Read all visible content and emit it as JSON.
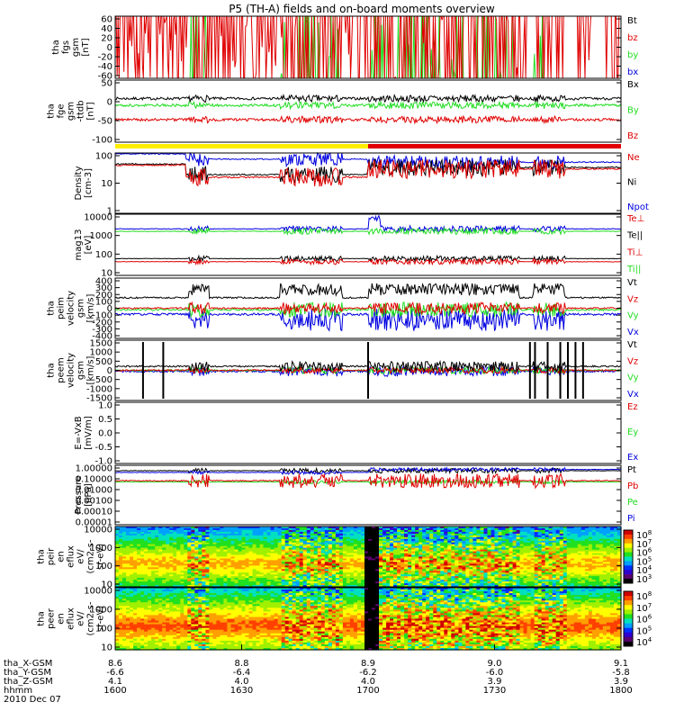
{
  "title": "P5 (TH-A) fields and on-board moments overview",
  "colors": {
    "black": "#000000",
    "red": "#e00000",
    "green": "#22dd22",
    "blue": "#0000e0",
    "yellow": "#ffee00"
  },
  "time_axis": {
    "xlim": [
      1600,
      1800
    ],
    "rows": [
      {
        "name": "tha_X-GSM",
        "values": [
          "8.6",
          "8.8",
          "8.9",
          "9.0",
          "9.1"
        ]
      },
      {
        "name": "tha_Y-GSM",
        "values": [
          "-6.6",
          "-6.4",
          "-6.2",
          "-6.0",
          "-5.8"
        ]
      },
      {
        "name": "tha_Z-GSM",
        "values": [
          "4.1",
          "4.0",
          "4.0",
          "3.9",
          "3.9"
        ]
      },
      {
        "name": "hhmm",
        "values": [
          "1600",
          "1630",
          "1700",
          "1730",
          "1800"
        ]
      }
    ],
    "date": "2010 Dec 07"
  },
  "chart_data": [
    {
      "type": "line",
      "ylabel": [
        "tha",
        "fgs",
        "gsm",
        "[nT]"
      ],
      "yticks": [
        "60",
        "40",
        "20",
        "0",
        "-20",
        "-40",
        "-60"
      ],
      "ylim": [
        -60,
        60
      ],
      "series": [
        {
          "name": "Bt",
          "color": "#000000"
        },
        {
          "name": "bz",
          "color": "#e00000"
        },
        {
          "name": "by",
          "color": "#22dd22"
        },
        {
          "name": "bx",
          "color": "#0000e0"
        }
      ]
    },
    {
      "type": "line",
      "ylabel": [
        "tha",
        "fge",
        "gsm",
        "-ttdb",
        "[nT]"
      ],
      "yticks": [
        "50",
        "0",
        "-50",
        "-100"
      ],
      "ylim": [
        -125,
        60
      ],
      "series": [
        {
          "name": "Bx",
          "color": "#000000"
        },
        {
          "name": "By",
          "color": "#22dd22"
        },
        {
          "name": "Bz",
          "color": "#e00000"
        }
      ]
    },
    {
      "type": "line",
      "ylabel": [
        "Density",
        "[cm-3]"
      ],
      "scale": "log",
      "yticks": [
        "100",
        "10",
        "1"
      ],
      "ylim": [
        1,
        150
      ],
      "series": [
        {
          "name": "Ne",
          "color": "#e00000"
        },
        {
          "name": "Ni",
          "color": "#000000"
        },
        {
          "name": "Npot",
          "color": "#0000e0"
        }
      ]
    },
    {
      "type": "line",
      "ylabel": [
        "mag13",
        "[eV]"
      ],
      "scale": "log",
      "yticks": [
        "10000",
        "1000",
        "100",
        "10"
      ],
      "ylim": [
        5,
        15000
      ],
      "series": [
        {
          "name": "Te⊥",
          "color": "#e00000"
        },
        {
          "name": "Te||",
          "color": "#000000"
        },
        {
          "name": "Ti⊥",
          "color": "#e00000"
        },
        {
          "name": "Ti||",
          "color": "#22dd22"
        }
      ]
    },
    {
      "type": "line",
      "ylabel": [
        "tha",
        "peim",
        "velocity",
        "gsm",
        "[km/s]"
      ],
      "yticks": [
        "400",
        "300",
        "200",
        "100",
        "0",
        "-100",
        "-200",
        "-300",
        "-400"
      ],
      "ylim": [
        -400,
        400
      ],
      "series": [
        {
          "name": "Vt",
          "color": "#000000"
        },
        {
          "name": "Vz",
          "color": "#e00000"
        },
        {
          "name": "Vy",
          "color": "#22dd22"
        },
        {
          "name": "Vx",
          "color": "#0000e0"
        }
      ]
    },
    {
      "type": "line",
      "ylabel": [
        "tha",
        "peem",
        "velocity",
        "gsm",
        "[km/s]"
      ],
      "yticks": [
        "1500",
        "1000",
        "500",
        "0",
        "-500",
        "-1000",
        "-1500"
      ],
      "ylim": [
        -1500,
        1500
      ],
      "series": [
        {
          "name": "Vt",
          "color": "#000000"
        },
        {
          "name": "Vz",
          "color": "#e00000"
        },
        {
          "name": "Vy",
          "color": "#22dd22"
        },
        {
          "name": "Vx",
          "color": "#0000e0"
        }
      ]
    },
    {
      "type": "line",
      "ylabel": [
        "E=-VxB",
        "[mV/m]"
      ],
      "yticks": [
        "1.0",
        "0.5",
        "0.0",
        "-0.5",
        "-1.0"
      ],
      "ylim": [
        -1,
        1
      ],
      "series": [
        {
          "name": "Ez",
          "color": "#e00000"
        },
        {
          "name": "Ey",
          "color": "#22dd22"
        },
        {
          "name": "Ex",
          "color": "#0000e0"
        }
      ]
    },
    {
      "type": "line",
      "ylabel": [
        "Pressure",
        "[nPa]"
      ],
      "scale": "log",
      "yticks": [
        "1.00000",
        "0.10000",
        "0.01000",
        "0.00100",
        "0.00010",
        "0.00001"
      ],
      "ylim": [
        1e-05,
        1
      ],
      "series": [
        {
          "name": "Pt",
          "color": "#000000"
        },
        {
          "name": "Pb",
          "color": "#e00000"
        },
        {
          "name": "Pe",
          "color": "#22dd22"
        },
        {
          "name": "Pi",
          "color": "#0000e0"
        }
      ]
    },
    {
      "type": "heatmap",
      "ylabel": [
        "tha",
        "peir",
        "en",
        "eflux",
        "eV/",
        "(cm2-s-",
        "sr-eV)"
      ],
      "scale": "log",
      "yticks": [
        "10000",
        "1000",
        "100",
        "10"
      ],
      "ylim": [
        5,
        30000
      ],
      "colorbar": {
        "ticks": [
          "10^8",
          "10^7",
          "10^6",
          "10^5",
          "10^4",
          "10^3"
        ],
        "range": [
          1000,
          100000000
        ]
      }
    },
    {
      "type": "heatmap",
      "ylabel": [
        "tha",
        "peer",
        "en",
        "eflux",
        "eV/",
        "(cm2-s-",
        "sr-eV)"
      ],
      "scale": "log",
      "yticks": [
        "10000",
        "1000",
        "100",
        "10"
      ],
      "ylim": [
        5,
        30000
      ],
      "colorbar": {
        "ticks": [
          "10^8",
          "10^7",
          "10^6",
          "10^5",
          "10^4"
        ],
        "range": [
          5000,
          100000000
        ]
      }
    }
  ]
}
